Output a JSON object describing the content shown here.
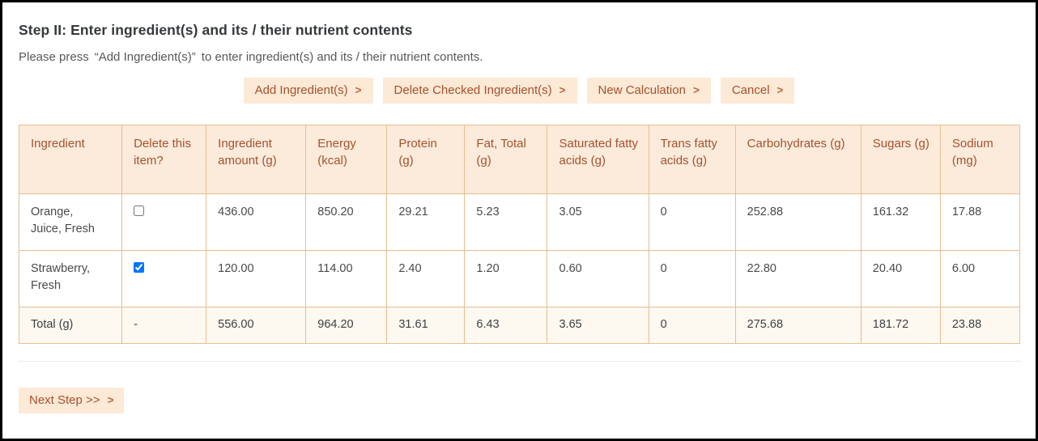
{
  "page": {
    "title": "Step II: Enter ingredient(s) and its / their nutrient contents",
    "subtitle": {
      "prefix": "Please press",
      "quoted": "“Add Ingredient(s)”",
      "suffix": "to enter ingredient(s) and its / their nutrient contents."
    }
  },
  "colors": {
    "accent_text": "#a5512c",
    "button_background": "#fce9d6",
    "table_border": "#e9bd8d",
    "header_background": "#fcebdb",
    "total_row_background": "#fdf8f0",
    "body_text": "#48494b",
    "chevron": "#b96a38"
  },
  "toolbar": {
    "chevron": ">",
    "buttons": [
      {
        "name": "add-ingredients-button",
        "label": "Add Ingredient(s)"
      },
      {
        "name": "delete-checked-ingredients-button",
        "label": "Delete Checked Ingredient(s)"
      },
      {
        "name": "new-calculation-button",
        "label": "New Calculation"
      },
      {
        "name": "cancel-button",
        "label": "Cancel"
      }
    ]
  },
  "table": {
    "columns": [
      "Ingredient",
      "Delete this item?",
      "Ingredient amount (g)",
      "Energy (kcal)",
      "Protein (g)",
      "Fat, Total (g)",
      "Saturated fatty acids (g)",
      "Trans fatty acids (g)",
      "Carbohydrates (g)",
      "Sugars (g)",
      "Sodium (mg)"
    ],
    "rows": [
      {
        "ingredient": "Orange, Juice, Fresh",
        "checked": false,
        "values": [
          "436.00",
          "850.20",
          "29.21",
          "5.23",
          "3.05",
          "0",
          "252.88",
          "161.32",
          "17.88"
        ]
      },
      {
        "ingredient": "Strawberry, Fresh",
        "checked": true,
        "values": [
          "120.00",
          "114.00",
          "2.40",
          "1.20",
          "0.60",
          "0",
          "22.80",
          "20.40",
          "6.00"
        ]
      }
    ],
    "total": {
      "label": "Total (g)",
      "delete_cell": "-",
      "values": [
        "556.00",
        "964.20",
        "31.61",
        "6.43",
        "3.65",
        "0",
        "275.68",
        "181.72",
        "23.88"
      ]
    }
  },
  "footer": {
    "next_label": "Next Step >>",
    "next_chevron": ">"
  }
}
